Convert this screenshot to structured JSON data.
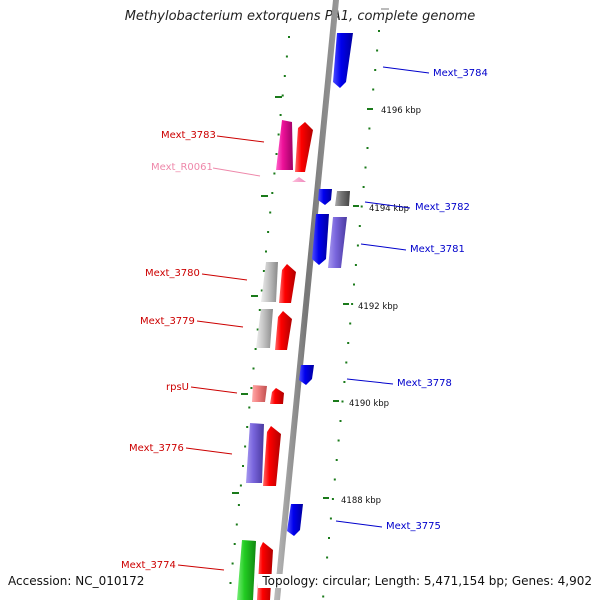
{
  "title": "Methylobacterium extorquens PA1, complete genome",
  "footer": {
    "accession": "Accession: NC_010172",
    "summary": "Topology: circular; Length: 5,471,154 bp; Genes: 4,902"
  },
  "colors": {
    "backbone": "#888888",
    "ruler_dots": "#1a7a1a",
    "forward_label": "#cc0000",
    "reverse_label": "#0000cc",
    "rna_label": "#ee88aa"
  },
  "ruler_ticks": [
    {
      "label": "4196 kbp"
    },
    {
      "label": "4194 kbp"
    },
    {
      "label": "4192 kbp"
    },
    {
      "label": "4190 kbp"
    },
    {
      "label": "4188 kbp"
    }
  ],
  "genes": [
    {
      "id": "Mext_3784",
      "strand": "reverse",
      "color": "blue"
    },
    {
      "id": "Mext_3783",
      "strand": "forward",
      "color": "magenta"
    },
    {
      "id": "Mext_R0061",
      "strand": "forward",
      "color": "pink"
    },
    {
      "id": "Mext_3782",
      "strand": "reverse",
      "color": "blue"
    },
    {
      "id": "Mext_3781",
      "strand": "reverse",
      "color": "blue"
    },
    {
      "id": "Mext_3780",
      "strand": "forward",
      "color": "gray"
    },
    {
      "id": "Mext_3779",
      "strand": "forward",
      "color": "gray"
    },
    {
      "id": "Mext_3778",
      "strand": "reverse",
      "color": "blue"
    },
    {
      "id": "rpsU",
      "strand": "forward",
      "color": "salmon"
    },
    {
      "id": "Mext_3776",
      "strand": "forward",
      "color": "purple"
    },
    {
      "id": "Mext_3775",
      "strand": "reverse",
      "color": "blue"
    },
    {
      "id": "Mext_3774",
      "strand": "forward",
      "color": "green"
    }
  ]
}
